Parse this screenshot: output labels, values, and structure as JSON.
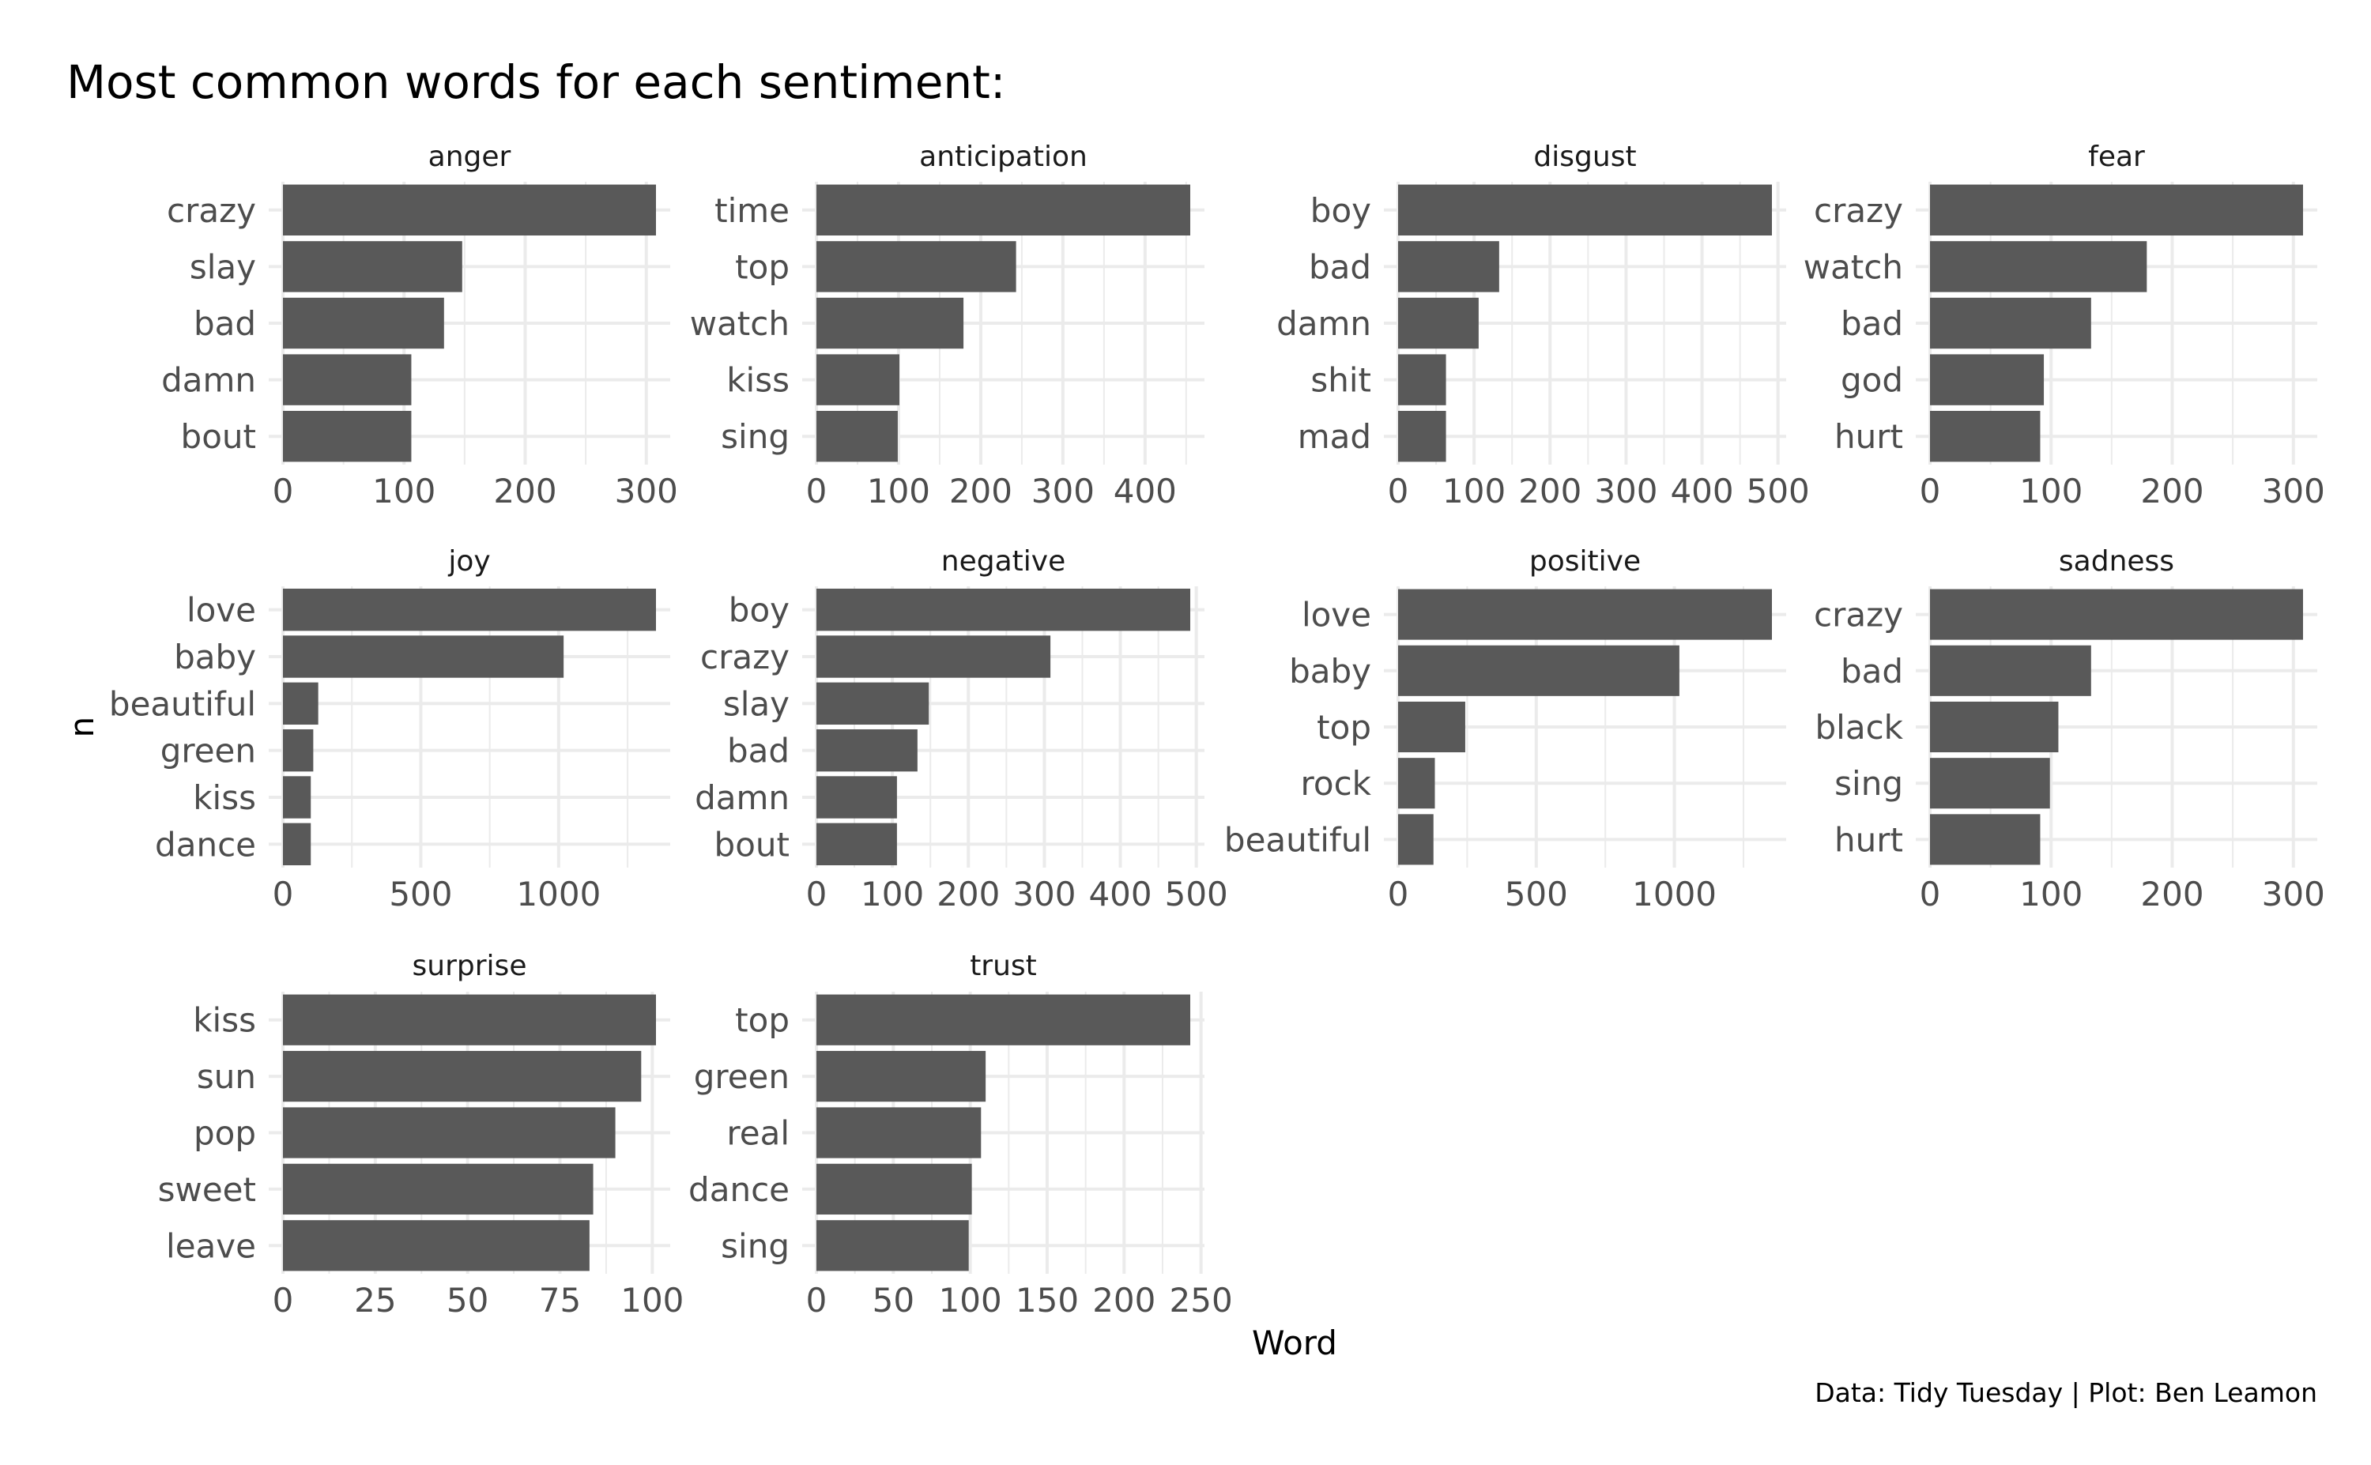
{
  "chart_data": {
    "type": "bar",
    "orientation": "horizontal",
    "title": "Most common words for each sentiment:",
    "xlabel": "Word",
    "ylabel": "n",
    "caption": "Data: Tidy Tuesday | Plot: Ben Leamon",
    "bar_color": "#595959",
    "grid": true,
    "facets": [
      {
        "name": "anger",
        "categories": [
          "crazy",
          "slay",
          "bad",
          "damn",
          "bout"
        ],
        "values": [
          308,
          148,
          133,
          106,
          106
        ],
        "ticks": [
          0,
          100,
          200,
          300
        ]
      },
      {
        "name": "anticipation",
        "categories": [
          "time",
          "top",
          "watch",
          "kiss",
          "sing"
        ],
        "values": [
          455,
          243,
          179,
          101,
          99
        ],
        "ticks": [
          0,
          100,
          200,
          300,
          400
        ]
      },
      {
        "name": "disgust",
        "categories": [
          "boy",
          "bad",
          "damn",
          "shit",
          "mad"
        ],
        "values": [
          492,
          133,
          106,
          63,
          63
        ],
        "ticks": [
          0,
          100,
          200,
          300,
          400,
          500
        ]
      },
      {
        "name": "fear",
        "categories": [
          "crazy",
          "watch",
          "bad",
          "god",
          "hurt"
        ],
        "values": [
          308,
          179,
          133,
          94,
          91
        ],
        "ticks": [
          0,
          100,
          200,
          300
        ]
      },
      {
        "name": "joy",
        "categories": [
          "love",
          "baby",
          "beautiful",
          "green",
          "kiss",
          "dance"
        ],
        "values": [
          1353,
          1018,
          128,
          110,
          101,
          101
        ],
        "ticks": [
          0,
          500,
          1000
        ]
      },
      {
        "name": "negative",
        "categories": [
          "boy",
          "crazy",
          "slay",
          "bad",
          "damn",
          "bout"
        ],
        "values": [
          492,
          308,
          148,
          133,
          106,
          106
        ],
        "ticks": [
          0,
          100,
          200,
          300,
          400,
          500
        ]
      },
      {
        "name": "positive",
        "categories": [
          "love",
          "baby",
          "top",
          "rock",
          "beautiful"
        ],
        "values": [
          1353,
          1018,
          243,
          133,
          128
        ],
        "ticks": [
          0,
          500,
          1000
        ]
      },
      {
        "name": "sadness",
        "categories": [
          "crazy",
          "bad",
          "black",
          "sing",
          "hurt"
        ],
        "values": [
          308,
          133,
          106,
          99,
          91
        ],
        "ticks": [
          0,
          100,
          200,
          300
        ]
      },
      {
        "name": "surprise",
        "categories": [
          "kiss",
          "sun",
          "pop",
          "sweet",
          "leave"
        ],
        "values": [
          101,
          97,
          90,
          84,
          83
        ],
        "ticks": [
          0,
          25,
          50,
          75,
          100
        ]
      },
      {
        "name": "trust",
        "categories": [
          "top",
          "green",
          "real",
          "dance",
          "sing"
        ],
        "values": [
          243,
          110,
          107,
          101,
          99
        ],
        "ticks": [
          0,
          50,
          100,
          150,
          200,
          250
        ]
      }
    ]
  }
}
